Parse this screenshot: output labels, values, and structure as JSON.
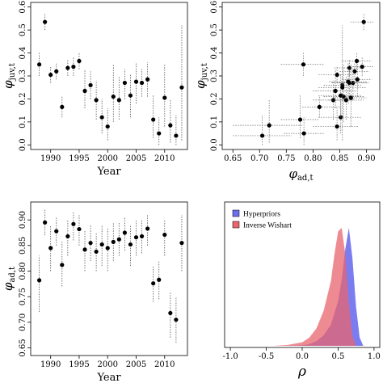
{
  "chart_data": [
    {
      "type": "scatter",
      "xlabel": "Year",
      "ylabel": "φ",
      "ylabel_sub": "juv,t",
      "xlim": [
        1986.5,
        2014
      ],
      "ylim": [
        -0.02,
        0.62
      ],
      "xticks": [
        1990,
        1995,
        2000,
        2005,
        2010
      ],
      "yticks": [
        0.0,
        0.1,
        0.2,
        0.3,
        0.4,
        0.5,
        0.6
      ],
      "error_bars": "dotted vertical",
      "x": [
        1988,
        1989,
        1990,
        1991,
        1992,
        1993,
        1994,
        1995,
        1996,
        1997,
        1998,
        1999,
        2000,
        2001,
        2002,
        2003,
        2004,
        2005,
        2006,
        2007,
        2008,
        2009,
        2010,
        2011,
        2012,
        2013
      ],
      "y": [
        0.35,
        0.535,
        0.305,
        0.32,
        0.165,
        0.335,
        0.34,
        0.365,
        0.235,
        0.26,
        0.195,
        0.12,
        0.08,
        0.21,
        0.195,
        0.27,
        0.215,
        0.275,
        0.27,
        0.285,
        0.11,
        0.05,
        0.205,
        0.085,
        0.04,
        0.25
      ],
      "lo": [
        0.3,
        0.5,
        0.27,
        0.285,
        0.12,
        0.3,
        0.3,
        0.33,
        0.16,
        0.2,
        0.11,
        0.05,
        0.02,
        0.1,
        0.11,
        0.2,
        0.12,
        0.18,
        0.21,
        0.21,
        0.03,
        0.0,
        0.08,
        0.01,
        0.0,
        0.02
      ],
      "hi": [
        0.4,
        0.57,
        0.34,
        0.355,
        0.21,
        0.37,
        0.38,
        0.4,
        0.33,
        0.32,
        0.28,
        0.2,
        0.16,
        0.35,
        0.3,
        0.33,
        0.31,
        0.36,
        0.33,
        0.36,
        0.22,
        0.12,
        0.35,
        0.2,
        0.13,
        0.52
      ]
    },
    {
      "type": "scatter",
      "xlabel": "φ",
      "xlabel_sub": "ad,t",
      "ylabel": "φ",
      "ylabel_sub": "juv,t",
      "xlim": [
        0.63,
        0.925
      ],
      "ylim": [
        -0.02,
        0.62
      ],
      "xticks": [
        0.65,
        0.7,
        0.75,
        0.8,
        0.85,
        0.9
      ],
      "yticks": [
        0.0,
        0.1,
        0.2,
        0.3,
        0.4,
        0.5,
        0.6
      ],
      "error_bars": "dotted horizontal and vertical",
      "x": [
        0.782,
        0.895,
        0.845,
        0.878,
        0.812,
        0.868,
        0.892,
        0.882,
        0.842,
        0.855,
        0.838,
        0.852,
        0.845,
        0.857,
        0.862,
        0.875,
        0.852,
        0.866,
        0.868,
        0.883,
        0.776,
        0.783,
        0.871,
        0.718,
        0.705,
        0.855
      ],
      "y": [
        0.35,
        0.535,
        0.305,
        0.32,
        0.165,
        0.335,
        0.34,
        0.365,
        0.235,
        0.26,
        0.195,
        0.12,
        0.08,
        0.21,
        0.195,
        0.27,
        0.215,
        0.275,
        0.27,
        0.285,
        0.11,
        0.05,
        0.205,
        0.085,
        0.04,
        0.25
      ],
      "xlo": [
        0.74,
        0.87,
        0.81,
        0.85,
        0.78,
        0.84,
        0.865,
        0.855,
        0.8,
        0.82,
        0.8,
        0.81,
        0.8,
        0.82,
        0.83,
        0.845,
        0.81,
        0.83,
        0.835,
        0.855,
        0.74,
        0.745,
        0.84,
        0.65,
        0.65,
        0.81
      ],
      "xhi": [
        0.82,
        0.915,
        0.88,
        0.905,
        0.85,
        0.895,
        0.915,
        0.91,
        0.88,
        0.89,
        0.875,
        0.89,
        0.885,
        0.895,
        0.895,
        0.905,
        0.89,
        0.9,
        0.9,
        0.91,
        0.81,
        0.82,
        0.9,
        0.78,
        0.76,
        0.9
      ],
      "ylo": [
        0.3,
        0.5,
        0.27,
        0.285,
        0.12,
        0.3,
        0.3,
        0.33,
        0.16,
        0.2,
        0.11,
        0.05,
        0.02,
        0.1,
        0.11,
        0.2,
        0.12,
        0.18,
        0.21,
        0.21,
        0.03,
        0.0,
        0.08,
        0.01,
        0.0,
        0.02
      ],
      "yhi": [
        0.4,
        0.57,
        0.34,
        0.355,
        0.21,
        0.37,
        0.38,
        0.4,
        0.33,
        0.32,
        0.28,
        0.2,
        0.16,
        0.35,
        0.3,
        0.33,
        0.31,
        0.36,
        0.33,
        0.36,
        0.22,
        0.12,
        0.35,
        0.2,
        0.13,
        0.52
      ]
    },
    {
      "type": "scatter",
      "xlabel": "Year",
      "ylabel": "φ",
      "ylabel_sub": "ad,t",
      "xlim": [
        1986.5,
        2014
      ],
      "ylim": [
        0.635,
        0.935
      ],
      "xticks": [
        1990,
        1995,
        2000,
        2005,
        2010
      ],
      "yticks": [
        0.65,
        0.7,
        0.75,
        0.8,
        0.85,
        0.9
      ],
      "error_bars": "dotted vertical",
      "x": [
        1988,
        1989,
        1990,
        1991,
        1992,
        1993,
        1994,
        1995,
        1996,
        1997,
        1998,
        1999,
        2000,
        2001,
        2002,
        2003,
        2004,
        2005,
        2006,
        2007,
        2008,
        2009,
        2010,
        2011,
        2012,
        2013
      ],
      "y": [
        0.782,
        0.895,
        0.845,
        0.878,
        0.812,
        0.868,
        0.892,
        0.882,
        0.842,
        0.855,
        0.838,
        0.852,
        0.845,
        0.857,
        0.862,
        0.875,
        0.852,
        0.866,
        0.868,
        0.883,
        0.776,
        0.783,
        0.871,
        0.718,
        0.705,
        0.855
      ],
      "lo": [
        0.72,
        0.87,
        0.8,
        0.85,
        0.77,
        0.83,
        0.86,
        0.85,
        0.8,
        0.82,
        0.8,
        0.81,
        0.8,
        0.82,
        0.83,
        0.84,
        0.81,
        0.83,
        0.835,
        0.85,
        0.74,
        0.745,
        0.83,
        0.67,
        0.66,
        0.8
      ],
      "hi": [
        0.83,
        0.92,
        0.89,
        0.905,
        0.86,
        0.9,
        0.915,
        0.91,
        0.88,
        0.89,
        0.875,
        0.89,
        0.885,
        0.895,
        0.895,
        0.905,
        0.89,
        0.9,
        0.9,
        0.91,
        0.81,
        0.82,
        0.9,
        0.76,
        0.75,
        0.91
      ]
    },
    {
      "type": "area",
      "xlabel": "ρ",
      "xlim": [
        -1.08,
        1.08
      ],
      "xticks": [
        -1.0,
        -0.5,
        0.0,
        0.5,
        1.0
      ],
      "legend_position": "top-left",
      "series": [
        {
          "name": "Hyperpriors",
          "color": "#6e6ef0",
          "x": [
            -0.2,
            0.0,
            0.1,
            0.2,
            0.3,
            0.4,
            0.5,
            0.55,
            0.6,
            0.65,
            0.7,
            0.75,
            0.8,
            0.85
          ],
          "density": [
            0,
            0.004,
            0.015,
            0.04,
            0.09,
            0.18,
            0.38,
            0.56,
            0.82,
            1.0,
            0.74,
            0.33,
            0.07,
            0
          ]
        },
        {
          "name": "Inverse Wishart",
          "color": "#e8646e",
          "x": [
            -0.4,
            -0.2,
            0.0,
            0.1,
            0.2,
            0.3,
            0.4,
            0.45,
            0.5,
            0.55,
            0.6,
            0.65,
            0.7,
            0.75
          ],
          "density": [
            0,
            0.008,
            0.03,
            0.07,
            0.15,
            0.3,
            0.55,
            0.78,
            0.97,
            1.0,
            0.78,
            0.36,
            0.08,
            0
          ]
        }
      ]
    }
  ]
}
